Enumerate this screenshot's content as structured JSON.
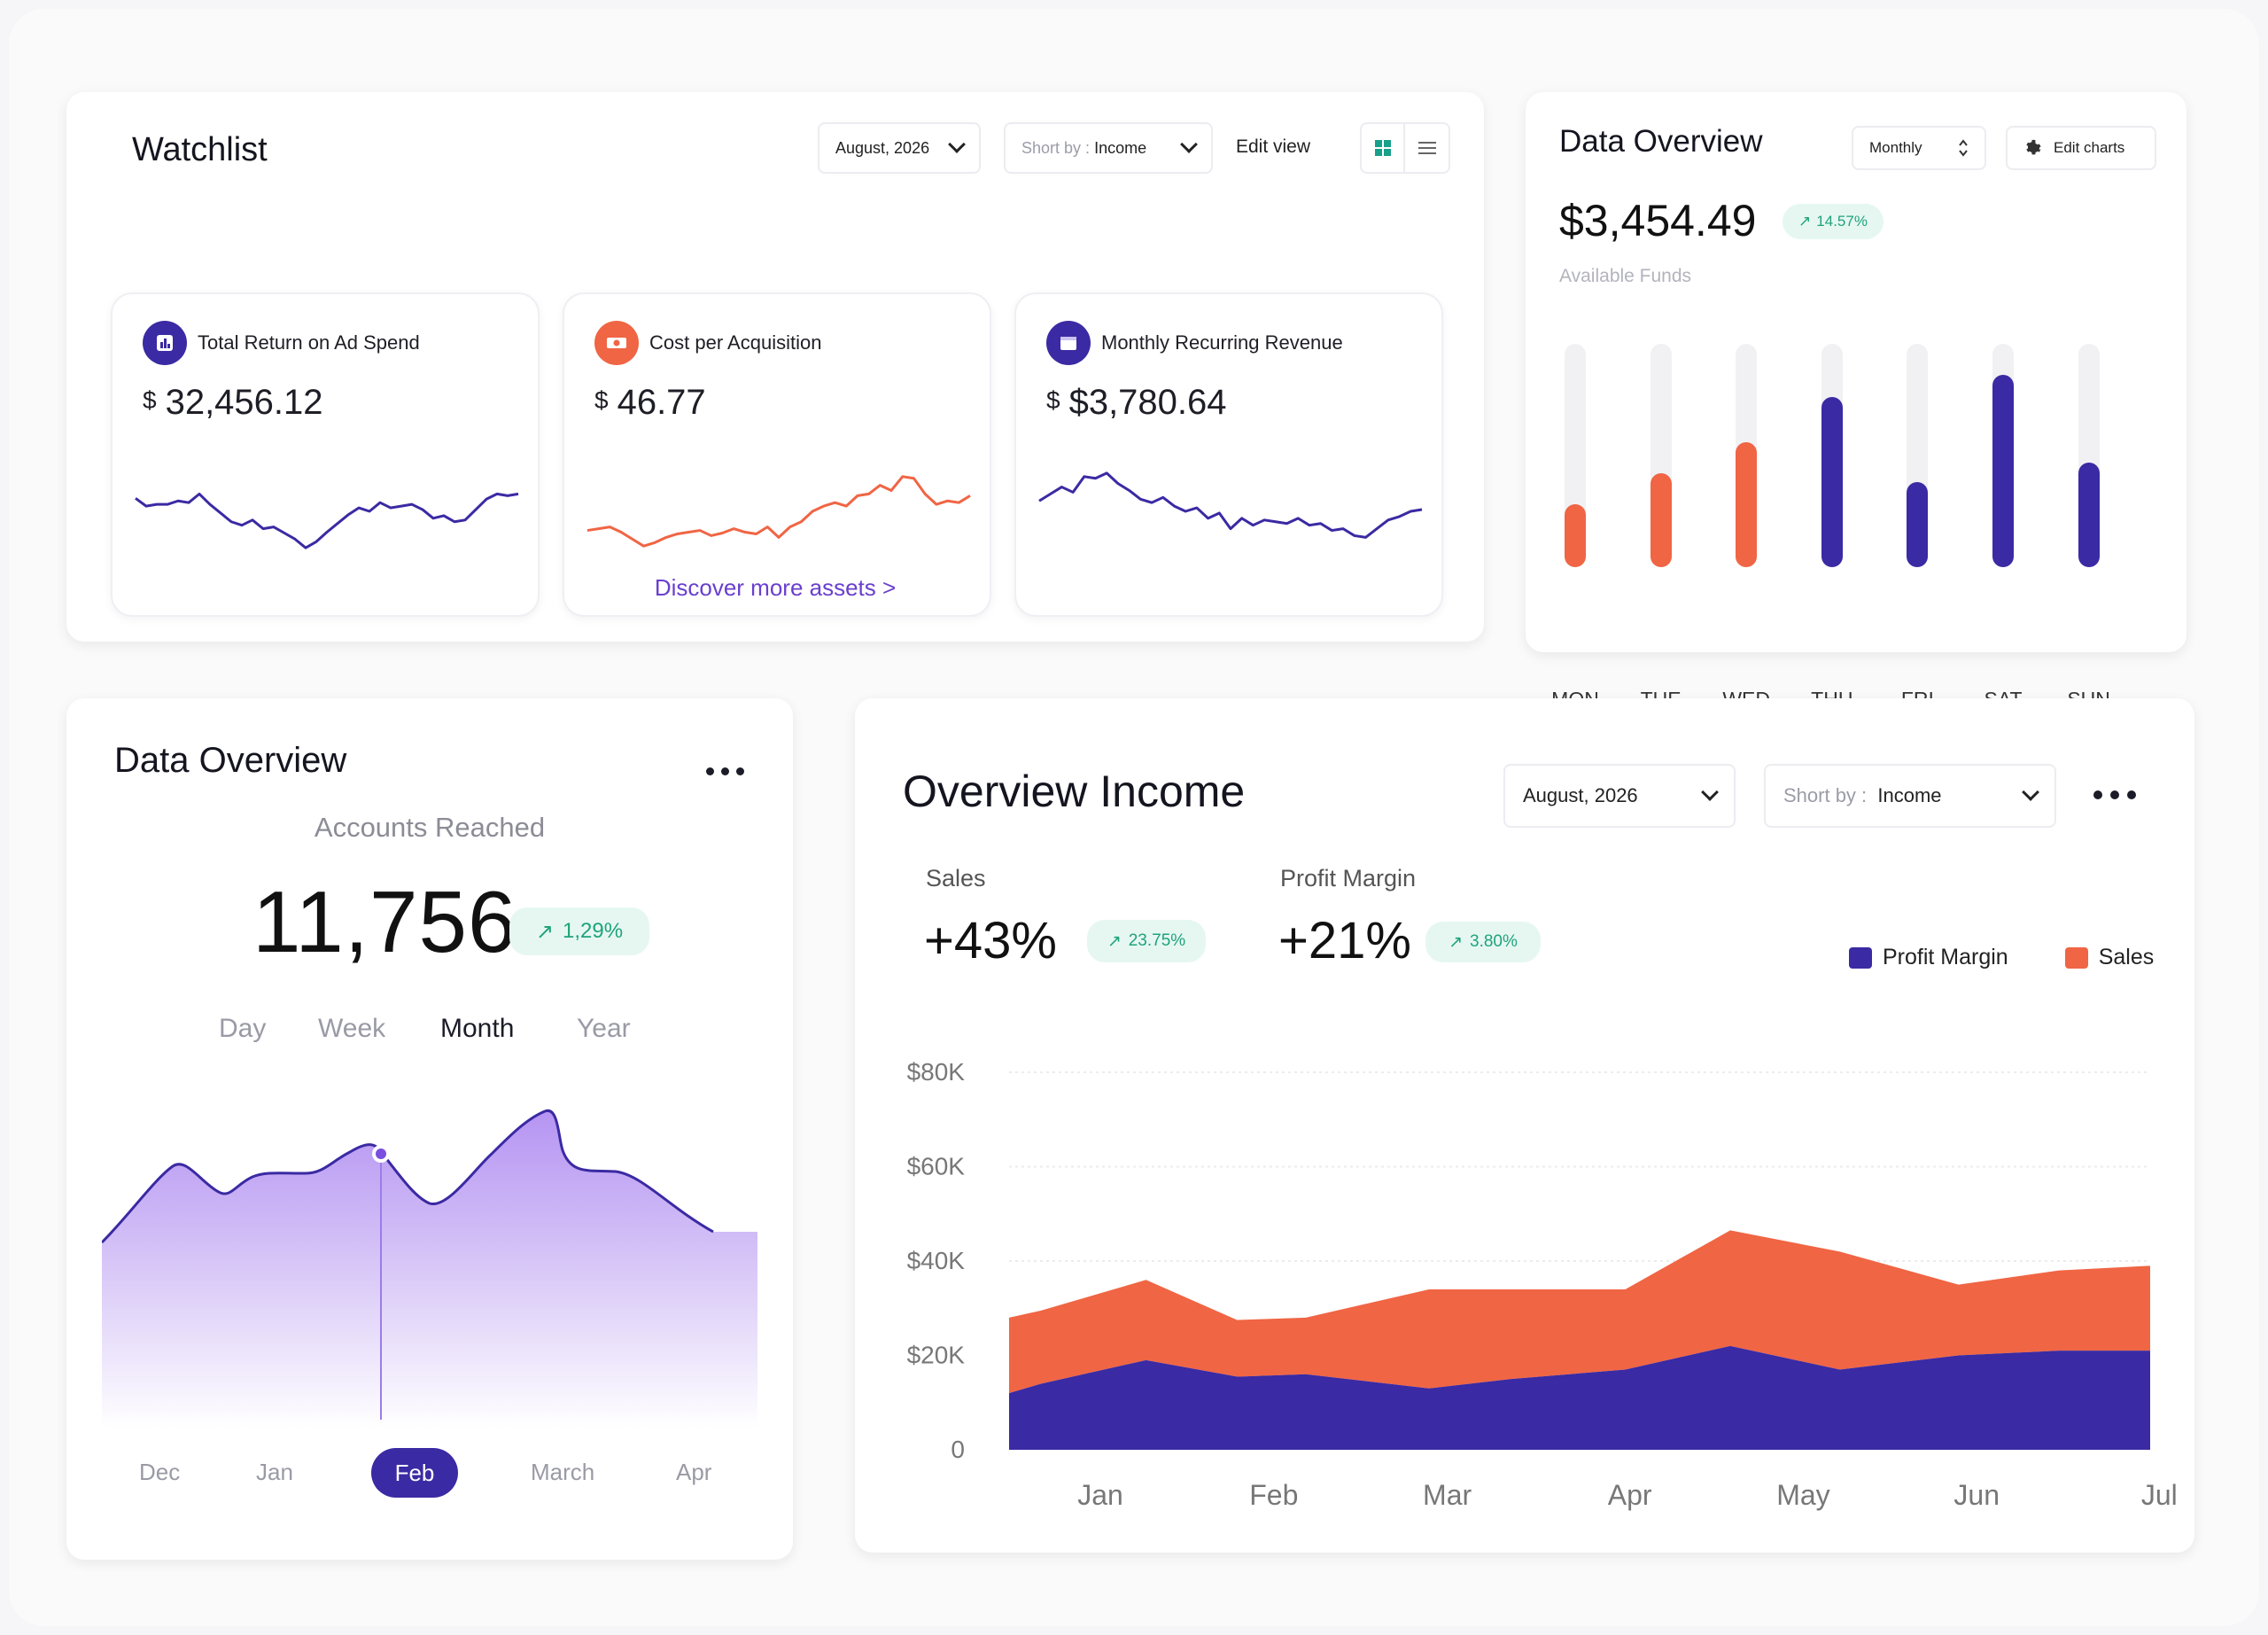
{
  "watchlist": {
    "title": "Watchlist",
    "date_select": "August, 2026",
    "sort_prefix": "Short by :",
    "sort_value": "Income",
    "edit_view": "Edit view",
    "discover": "Discover more assets >",
    "cards": [
      {
        "label": "Total Return on Ad Spend",
        "currency": "$",
        "value": "32,456.12",
        "icon": "chart-icon",
        "color": "#3a2aa3",
        "spark": [
          0.35,
          0.44,
          0.42,
          0.42,
          0.38,
          0.4,
          0.3,
          0.42,
          0.52,
          0.62,
          0.66,
          0.6,
          0.7,
          0.68,
          0.75,
          0.82,
          0.92,
          0.85,
          0.74,
          0.64,
          0.54,
          0.46,
          0.5,
          0.4,
          0.46,
          0.44,
          0.42,
          0.48,
          0.58,
          0.55,
          0.62,
          0.6,
          0.48,
          0.36,
          0.3,
          0.32,
          0.3
        ]
      },
      {
        "label": "Cost per Acquisition",
        "currency": "$",
        "value": "46.77",
        "icon": "ticket-icon",
        "color": "#f06544",
        "spark": [
          0.72,
          0.7,
          0.68,
          0.74,
          0.82,
          0.9,
          0.86,
          0.8,
          0.76,
          0.74,
          0.72,
          0.78,
          0.75,
          0.7,
          0.74,
          0.76,
          0.68,
          0.8,
          0.68,
          0.62,
          0.5,
          0.44,
          0.4,
          0.44,
          0.32,
          0.3,
          0.2,
          0.26,
          0.1,
          0.12,
          0.3,
          0.42,
          0.38,
          0.4,
          0.32
        ]
      },
      {
        "label": "Monthly Recurring Revenue",
        "currency": "$",
        "value": "$3,780.64",
        "icon": "wallet-icon",
        "color": "#3a2aa3",
        "spark": [
          0.38,
          0.3,
          0.22,
          0.28,
          0.1,
          0.12,
          0.06,
          0.18,
          0.26,
          0.36,
          0.4,
          0.34,
          0.44,
          0.5,
          0.46,
          0.58,
          0.52,
          0.7,
          0.58,
          0.66,
          0.6,
          0.62,
          0.64,
          0.58,
          0.66,
          0.64,
          0.72,
          0.7,
          0.78,
          0.8,
          0.7,
          0.6,
          0.56,
          0.5,
          0.48
        ]
      }
    ]
  },
  "top_overview": {
    "title": "Data Overview",
    "period": "Monthly",
    "edit_charts": "Edit charts",
    "amount": "$3,454.49",
    "change": "14.57%",
    "sub": "Available Funds",
    "days": [
      {
        "day": "MON",
        "level": 0.28,
        "color": "#f06544"
      },
      {
        "day": "TUE",
        "level": 0.42,
        "color": "#f06544"
      },
      {
        "day": "WED",
        "level": 0.56,
        "color": "#f06544"
      },
      {
        "day": "THU",
        "level": 0.76,
        "color": "#3a2aa3"
      },
      {
        "day": "FRI",
        "level": 0.38,
        "color": "#3a2aa3"
      },
      {
        "day": "SAT",
        "level": 0.86,
        "color": "#3a2aa3"
      },
      {
        "day": "SUN",
        "level": 0.47,
        "color": "#3a2aa3"
      }
    ]
  },
  "accounts": {
    "title": "Data Overview",
    "subtitle": "Accounts Reached",
    "value": "11,756",
    "change": "1,29%",
    "tabs": [
      "Day",
      "Week",
      "Month",
      "Year"
    ],
    "active_tab": "Month",
    "months": [
      "Dec",
      "Jan",
      "Feb",
      "March",
      "Apr"
    ],
    "active_month": "Feb"
  },
  "income": {
    "title": "Overview Income",
    "date_select": "August, 2026",
    "sort_prefix": "Short by :",
    "sort_value": "Income",
    "sales_label": "Sales",
    "sales_value": "+43%",
    "sales_change": "23.75%",
    "margin_label": "Profit Margin",
    "margin_value": "+21%",
    "margin_change": "3.80%",
    "legend": [
      {
        "name": "Profit Margin",
        "color": "#3a2aa3"
      },
      {
        "name": "Sales",
        "color": "#f06544"
      }
    ]
  },
  "chart_data": {
    "type": "area",
    "categories": [
      "Jan",
      "Feb",
      "Mar",
      "Apr",
      "May",
      "Jun",
      "Jul"
    ],
    "y_ticks": [
      "$80K",
      "$60K",
      "$40K",
      "$20K",
      "0"
    ],
    "ylim": [
      0,
      80000
    ],
    "stacked": true,
    "x": [
      0,
      0.35,
      1.5,
      2.5,
      3.25,
      4.6,
      5.5,
      6.75,
      7.9,
      9.1,
      10.4,
      11.5,
      12.5
    ],
    "series": [
      {
        "name": "Profit Margin",
        "color": "#3a2aa3",
        "values": [
          12000,
          14000,
          19000,
          15500,
          16000,
          13000,
          15000,
          17000,
          22000,
          17000,
          20000,
          21000,
          21000
        ]
      },
      {
        "name": "Sales",
        "color": "#f06544",
        "values": [
          28000,
          29500,
          36000,
          27500,
          28000,
          34000,
          34000,
          34000,
          46500,
          42000,
          35000,
          38000,
          39000
        ]
      }
    ]
  }
}
